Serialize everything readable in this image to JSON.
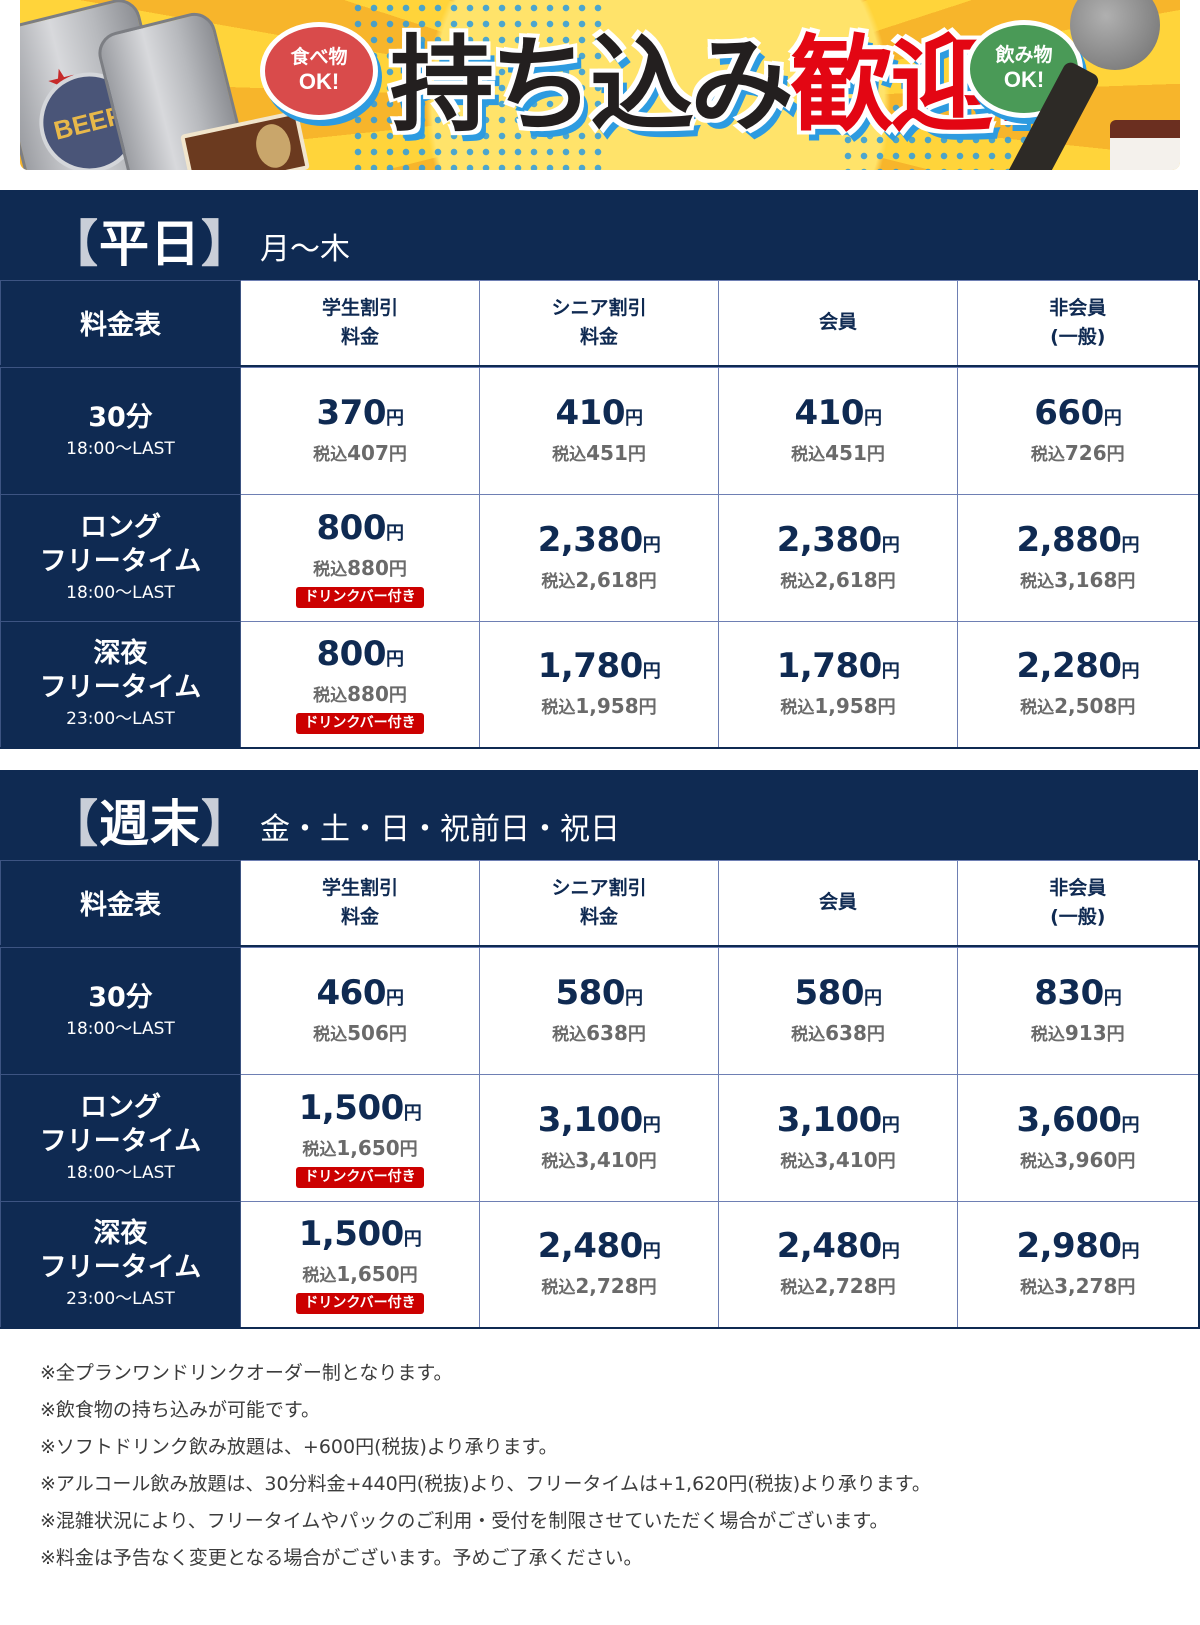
{
  "banner": {
    "headline_black": "持ち込み",
    "headline_red": "歓迎!",
    "bubble_food": {
      "line1": "食べ物",
      "line2": "OK!"
    },
    "bubble_drink": {
      "line1": "飲み物",
      "line2": "OK!"
    },
    "can_label": "BEER",
    "colors": {
      "yellow": "#ffd43a",
      "red_text": "#e30613",
      "food_bubble": "#d94b4b",
      "drink_bubble": "#4a9a57",
      "dots": "#2d9be0"
    }
  },
  "colors": {
    "navy": "#0f2a52",
    "badge_red": "#cc0000",
    "tax_gray": "#6a6a6a",
    "grid": "#6e7fb3"
  },
  "columns": {
    "corner": "料金表",
    "student": {
      "line1": "学生割引",
      "line2": "料金"
    },
    "senior": {
      "line1": "シニア割引",
      "line2": "料金"
    },
    "member": {
      "line1": "会員"
    },
    "nonmember": {
      "line1": "非会員",
      "line2": "(一般)"
    }
  },
  "labels": {
    "yen": "円",
    "tax_prefix": "税込",
    "drinkbar_badge": "ドリンクバー付き"
  },
  "weekday": {
    "bracket_open": "【",
    "title": "平日",
    "bracket_close": "】",
    "subtitle": "月〜木",
    "rows": [
      {
        "name1": "30分",
        "name2": "",
        "time": "18:00〜LAST",
        "prices": [
          {
            "price": "370",
            "tax": "407",
            "badge": false
          },
          {
            "price": "410",
            "tax": "451",
            "badge": false
          },
          {
            "price": "410",
            "tax": "451",
            "badge": false
          },
          {
            "price": "660",
            "tax": "726",
            "badge": false
          }
        ]
      },
      {
        "name1": "ロング",
        "name2": "フリータイム",
        "time": "18:00〜LAST",
        "prices": [
          {
            "price": "800",
            "tax": "880",
            "badge": true
          },
          {
            "price": "2,380",
            "tax": "2,618",
            "badge": false
          },
          {
            "price": "2,380",
            "tax": "2,618",
            "badge": false
          },
          {
            "price": "2,880",
            "tax": "3,168",
            "badge": false
          }
        ]
      },
      {
        "name1": "深夜",
        "name2": "フリータイム",
        "time": "23:00〜LAST",
        "prices": [
          {
            "price": "800",
            "tax": "880",
            "badge": true
          },
          {
            "price": "1,780",
            "tax": "1,958",
            "badge": false
          },
          {
            "price": "1,780",
            "tax": "1,958",
            "badge": false
          },
          {
            "price": "2,280",
            "tax": "2,508",
            "badge": false
          }
        ]
      }
    ]
  },
  "weekend": {
    "bracket_open": "【",
    "title": "週末",
    "bracket_close": "】",
    "subtitle": "金・土・日・祝前日・祝日",
    "rows": [
      {
        "name1": "30分",
        "name2": "",
        "time": "18:00〜LAST",
        "prices": [
          {
            "price": "460",
            "tax": "506",
            "badge": false
          },
          {
            "price": "580",
            "tax": "638",
            "badge": false
          },
          {
            "price": "580",
            "tax": "638",
            "badge": false
          },
          {
            "price": "830",
            "tax": "913",
            "badge": false
          }
        ]
      },
      {
        "name1": "ロング",
        "name2": "フリータイム",
        "time": "18:00〜LAST",
        "prices": [
          {
            "price": "1,500",
            "tax": "1,650",
            "badge": true
          },
          {
            "price": "3,100",
            "tax": "3,410",
            "badge": false
          },
          {
            "price": "3,100",
            "tax": "3,410",
            "badge": false
          },
          {
            "price": "3,600",
            "tax": "3,960",
            "badge": false
          }
        ]
      },
      {
        "name1": "深夜",
        "name2": "フリータイム",
        "time": "23:00〜LAST",
        "prices": [
          {
            "price": "1,500",
            "tax": "1,650",
            "badge": true
          },
          {
            "price": "2,480",
            "tax": "2,728",
            "badge": false
          },
          {
            "price": "2,480",
            "tax": "2,728",
            "badge": false
          },
          {
            "price": "2,980",
            "tax": "3,278",
            "badge": false
          }
        ]
      }
    ]
  },
  "notes": [
    "※全プランワンドリンクオーダー制となります。",
    "※飲食物の持ち込みが可能です。",
    "※ソフトドリンク飲み放題は、+600円(税抜)より承ります。",
    "※アルコール飲み放題は、30分料金+440円(税抜)より、フリータイムは+1,620円(税抜)より承ります。",
    "※混雑状況により、フリータイムやパックのご利用・受付を制限させていただく場合がございます。",
    "※料金は予告なく変更となる場合がございます。予めご了承ください。"
  ]
}
